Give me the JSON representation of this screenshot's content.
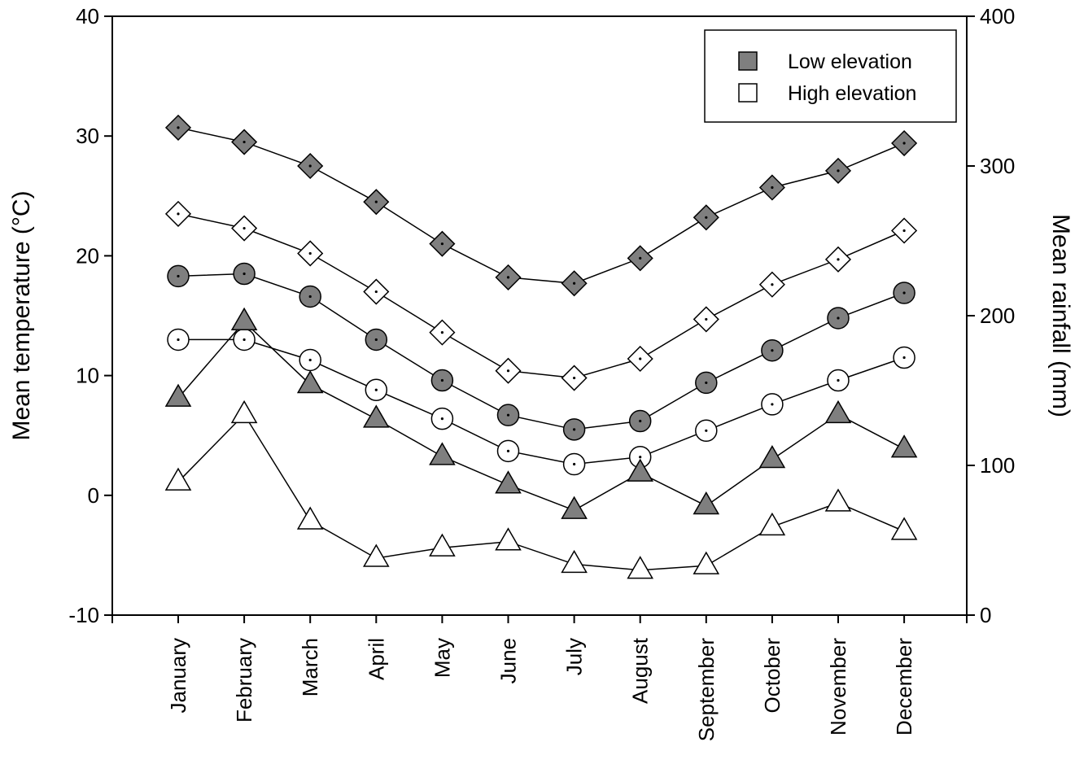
{
  "chart_data": {
    "type": "line",
    "categories": [
      "January",
      "February",
      "March",
      "April",
      "May",
      "June",
      "July",
      "August",
      "September",
      "October",
      "November",
      "December"
    ],
    "y_left": {
      "label": "Mean temperature (°C)",
      "lim": [
        -10,
        40
      ],
      "ticks": [
        "-10",
        "0",
        "10",
        "20",
        "30",
        "40"
      ]
    },
    "y_right": {
      "label": "Mean rainfall (mm)",
      "lim": [
        0,
        400
      ],
      "ticks": [
        "0",
        "100",
        "200",
        "300",
        "400"
      ]
    },
    "legend": {
      "placement": "top-right",
      "entries": [
        {
          "label": "Low elevation",
          "color": "#7f7f7f"
        },
        {
          "label": "High elevation",
          "color": "#ffffff"
        }
      ]
    },
    "series": [
      {
        "elevation": "Low",
        "marker": "diamond",
        "axis": "left",
        "color": "#7f7f7f",
        "values": [
          30.7,
          29.5,
          27.5,
          24.5,
          21.0,
          18.2,
          17.7,
          19.8,
          23.2,
          25.7,
          27.1,
          29.4
        ]
      },
      {
        "elevation": "High",
        "marker": "diamond",
        "axis": "left",
        "color": "#ffffff",
        "values": [
          23.5,
          22.3,
          20.2,
          17.0,
          13.6,
          10.4,
          9.8,
          11.4,
          14.7,
          17.6,
          19.7,
          22.1
        ]
      },
      {
        "elevation": "Low",
        "marker": "circle",
        "axis": "left",
        "color": "#7f7f7f",
        "values": [
          18.3,
          18.5,
          16.6,
          13.0,
          9.6,
          6.7,
          5.5,
          6.2,
          9.4,
          12.1,
          14.8,
          16.9
        ]
      },
      {
        "elevation": "High",
        "marker": "circle",
        "axis": "left",
        "color": "#ffffff",
        "values": [
          13.0,
          13.0,
          11.3,
          8.8,
          6.4,
          3.7,
          2.6,
          3.2,
          5.4,
          7.6,
          9.6,
          11.5
        ]
      },
      {
        "elevation": "Low",
        "marker": "triangle",
        "axis": "right",
        "color": "#7f7f7f",
        "values": [
          145,
          196,
          154,
          131,
          106,
          87,
          70,
          95,
          73,
          104,
          134,
          111
        ]
      },
      {
        "elevation": "High",
        "marker": "triangle",
        "axis": "right",
        "color": "#ffffff",
        "values": [
          89,
          134,
          63,
          38,
          45,
          49,
          34,
          30,
          33,
          59,
          75,
          56
        ]
      }
    ],
    "grid": false
  }
}
